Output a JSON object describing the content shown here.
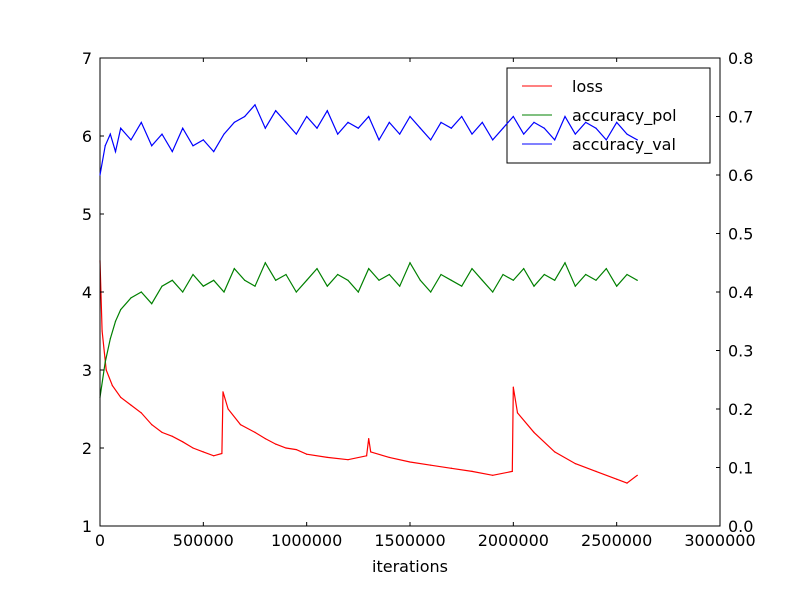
{
  "chart_data": {
    "type": "line",
    "xlabel": "iterations",
    "xlim": [
      0,
      3000000
    ],
    "ylim_left": [
      1,
      7
    ],
    "ylim_right": [
      0.0,
      0.8
    ],
    "xticks": [
      "0",
      "500000",
      "1000000",
      "1500000",
      "2000000",
      "2500000",
      "3000000"
    ],
    "yticks_left": [
      "1",
      "2",
      "3",
      "4",
      "5",
      "6",
      "7"
    ],
    "yticks_right": [
      "0.0",
      "0.1",
      "0.2",
      "0.3",
      "0.4",
      "0.5",
      "0.6",
      "0.7",
      "0.8"
    ],
    "legend_position": "top-right",
    "grid": false,
    "series": [
      {
        "name": "loss",
        "axis": "left",
        "color": "#ff0000",
        "x": [
          0,
          10000,
          30000,
          60000,
          100000,
          150000,
          200000,
          250000,
          300000,
          350000,
          400000,
          450000,
          500000,
          550000,
          590000,
          595000,
          620000,
          680000,
          750000,
          800000,
          850000,
          900000,
          950000,
          1000000,
          1100000,
          1200000,
          1290000,
          1300000,
          1310000,
          1400000,
          1500000,
          1600000,
          1700000,
          1800000,
          1900000,
          1995000,
          2000000,
          2020000,
          2100000,
          2200000,
          2300000,
          2400000,
          2500000,
          2550000,
          2600000
        ],
        "y": [
          4.4,
          3.5,
          3.0,
          2.8,
          2.65,
          2.55,
          2.45,
          2.3,
          2.2,
          2.15,
          2.08,
          2.0,
          1.95,
          1.9,
          1.93,
          2.72,
          2.5,
          2.3,
          2.2,
          2.12,
          2.05,
          2.0,
          1.98,
          1.92,
          1.88,
          1.85,
          1.9,
          2.12,
          1.95,
          1.88,
          1.82,
          1.78,
          1.74,
          1.7,
          1.65,
          1.7,
          2.78,
          2.45,
          2.2,
          1.95,
          1.8,
          1.7,
          1.6,
          1.55,
          1.65
        ]
      },
      {
        "name": "accuracy_pol",
        "axis": "right",
        "color": "#008000",
        "x": [
          0,
          25000,
          50000,
          75000,
          100000,
          150000,
          200000,
          250000,
          300000,
          350000,
          400000,
          450000,
          500000,
          550000,
          600000,
          650000,
          700000,
          750000,
          800000,
          850000,
          900000,
          950000,
          1000000,
          1050000,
          1100000,
          1150000,
          1200000,
          1250000,
          1300000,
          1350000,
          1400000,
          1450000,
          1500000,
          1550000,
          1600000,
          1650000,
          1700000,
          1750000,
          1800000,
          1850000,
          1900000,
          1950000,
          2000000,
          2050000,
          2100000,
          2150000,
          2200000,
          2250000,
          2300000,
          2350000,
          2400000,
          2450000,
          2500000,
          2550000,
          2600000
        ],
        "y": [
          0.22,
          0.28,
          0.32,
          0.35,
          0.37,
          0.39,
          0.4,
          0.38,
          0.41,
          0.42,
          0.4,
          0.43,
          0.41,
          0.42,
          0.4,
          0.44,
          0.42,
          0.41,
          0.45,
          0.42,
          0.43,
          0.4,
          0.42,
          0.44,
          0.41,
          0.43,
          0.42,
          0.4,
          0.44,
          0.42,
          0.43,
          0.41,
          0.45,
          0.42,
          0.4,
          0.43,
          0.42,
          0.41,
          0.44,
          0.42,
          0.4,
          0.43,
          0.42,
          0.44,
          0.41,
          0.43,
          0.42,
          0.45,
          0.41,
          0.43,
          0.42,
          0.44,
          0.41,
          0.43,
          0.42
        ]
      },
      {
        "name": "accuracy_val",
        "axis": "right",
        "color": "#0000ff",
        "x": [
          0,
          25000,
          50000,
          75000,
          100000,
          150000,
          200000,
          250000,
          300000,
          350000,
          400000,
          450000,
          500000,
          550000,
          600000,
          650000,
          700000,
          750000,
          800000,
          850000,
          900000,
          950000,
          1000000,
          1050000,
          1100000,
          1150000,
          1200000,
          1250000,
          1300000,
          1350000,
          1400000,
          1450000,
          1500000,
          1550000,
          1600000,
          1650000,
          1700000,
          1750000,
          1800000,
          1850000,
          1900000,
          1950000,
          2000000,
          2050000,
          2100000,
          2150000,
          2200000,
          2250000,
          2300000,
          2350000,
          2400000,
          2450000,
          2500000,
          2550000,
          2600000
        ],
        "y": [
          0.6,
          0.65,
          0.67,
          0.64,
          0.68,
          0.66,
          0.69,
          0.65,
          0.67,
          0.64,
          0.68,
          0.65,
          0.66,
          0.64,
          0.67,
          0.69,
          0.7,
          0.72,
          0.68,
          0.71,
          0.69,
          0.67,
          0.7,
          0.68,
          0.71,
          0.67,
          0.69,
          0.68,
          0.7,
          0.66,
          0.69,
          0.67,
          0.7,
          0.68,
          0.66,
          0.69,
          0.68,
          0.7,
          0.67,
          0.69,
          0.66,
          0.68,
          0.7,
          0.67,
          0.69,
          0.68,
          0.66,
          0.7,
          0.67,
          0.69,
          0.68,
          0.66,
          0.69,
          0.67,
          0.66
        ]
      }
    ]
  }
}
